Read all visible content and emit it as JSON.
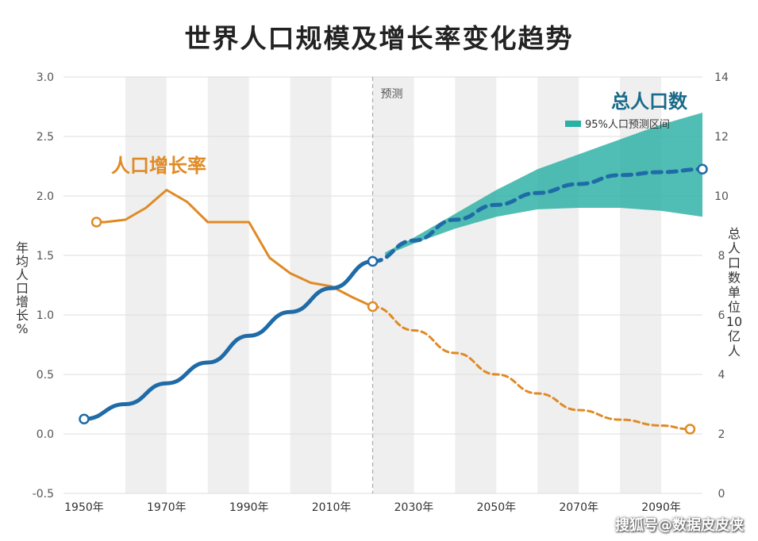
{
  "title": "世界人口规模及增长率变化趋势",
  "forecast_label": "预测",
  "watermark": "搜狐号@数据皮皮侠",
  "colors": {
    "rate": "#E08A25",
    "population": "#1F6BA8",
    "band": "#2AB0A4",
    "total_label": "#1A6A8A",
    "stripe": "#EFEFEF",
    "grid": "#DDDDDD",
    "forecast_line": "#AAAAAA"
  },
  "chart_data": {
    "type": "line",
    "title": "世界人口规模及增长率变化趋势",
    "x_tick_labels": [
      "1950年",
      "1970年",
      "1990年",
      "2010年",
      "2030年",
      "2050年",
      "2070年",
      "2090年"
    ],
    "x_ticks": [
      1950,
      1970,
      1990,
      2010,
      2030,
      2050,
      2070,
      2090
    ],
    "xlim": [
      1945,
      2100
    ],
    "forecast_start": 2020,
    "y_left": {
      "label_chars": [
        "年",
        "均",
        "人",
        "口",
        "增",
        "长",
        "%"
      ],
      "ticks": [
        -0.5,
        0.0,
        0.5,
        1.0,
        1.5,
        2.0,
        2.5,
        3.0
      ],
      "tick_labels": [
        "-0.5",
        "0.0",
        "0.5",
        "1.0",
        "1.5",
        "2.0",
        "2.5",
        "3.0"
      ],
      "lim": [
        -0.5,
        3.0
      ]
    },
    "y_right": {
      "label_chars": [
        "总",
        "人",
        "口",
        "数",
        "单",
        "位",
        "10",
        "亿",
        "人"
      ],
      "ticks": [
        0,
        2,
        4,
        6,
        8,
        10,
        12,
        14
      ],
      "tick_labels": [
        "0",
        "2",
        "4",
        "6",
        "8",
        "10",
        "12",
        "14"
      ],
      "lim": [
        0,
        14
      ]
    },
    "grid": true,
    "series": [
      {
        "name": "人口增长率",
        "axis": "left",
        "style": "solid",
        "x": [
          1953,
          1955,
          1960,
          1965,
          1970,
          1975,
          1980,
          1985,
          1990,
          1995,
          2000,
          2005,
          2010,
          2015,
          2020
        ],
        "y": [
          1.78,
          1.78,
          1.8,
          1.9,
          2.05,
          1.95,
          1.78,
          1.78,
          1.78,
          1.48,
          1.35,
          1.27,
          1.24,
          1.15,
          1.07
        ]
      },
      {
        "name": "人口增长率",
        "axis": "left",
        "style": "dashed",
        "x": [
          2020,
          2030,
          2040,
          2050,
          2060,
          2070,
          2080,
          2090,
          2097
        ],
        "y": [
          1.07,
          0.87,
          0.68,
          0.5,
          0.34,
          0.2,
          0.12,
          0.07,
          0.04
        ]
      },
      {
        "name": "总人口数",
        "axis": "right",
        "style": "solid",
        "x": [
          1950,
          1960,
          1970,
          1980,
          1990,
          2000,
          2010,
          2020
        ],
        "y": [
          2.5,
          3.0,
          3.7,
          4.4,
          5.3,
          6.1,
          6.9,
          7.8
        ]
      },
      {
        "name": "总人口数",
        "axis": "right",
        "style": "dashed",
        "x": [
          2020,
          2030,
          2040,
          2050,
          2060,
          2070,
          2080,
          2090,
          2100
        ],
        "y": [
          7.8,
          8.5,
          9.2,
          9.7,
          10.1,
          10.4,
          10.7,
          10.8,
          10.9
        ]
      }
    ],
    "band": {
      "name": "95%人口预测区间",
      "axis": "right",
      "x": [
        2023,
        2030,
        2040,
        2050,
        2060,
        2070,
        2080,
        2090,
        2100
      ],
      "lower": [
        8.0,
        8.4,
        8.9,
        9.3,
        9.55,
        9.6,
        9.6,
        9.5,
        9.3
      ],
      "upper": [
        8.1,
        8.6,
        9.4,
        10.2,
        10.9,
        11.4,
        11.9,
        12.4,
        12.8
      ]
    },
    "annotations": {
      "rate_label": "人口增长率",
      "total_label": "总人口数",
      "legend_band": "95%人口预测区间"
    }
  }
}
